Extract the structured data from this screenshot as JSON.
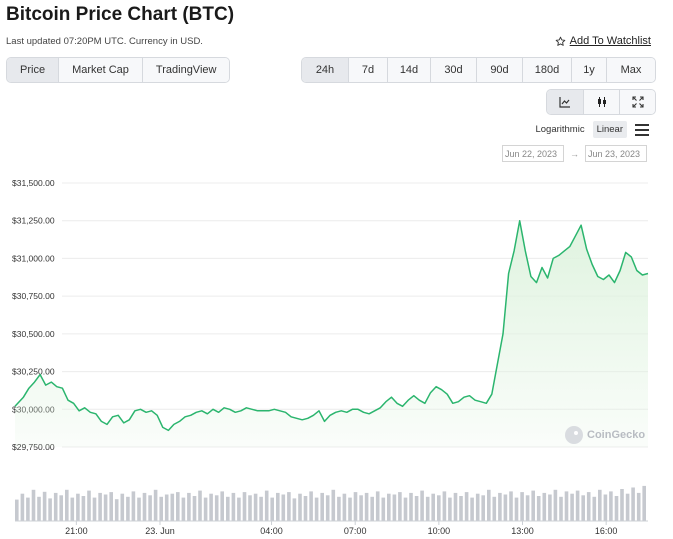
{
  "page": {
    "title": "Bitcoin Price Chart (BTC)",
    "updated": "Last updated 07:20PM UTC. Currency in USD.",
    "watchlist_label": "Add To Watchlist"
  },
  "tabs": [
    {
      "label": "Price",
      "active": true
    },
    {
      "label": "Market Cap",
      "active": false
    },
    {
      "label": "TradingView",
      "active": false
    }
  ],
  "ranges": [
    {
      "label": "24h",
      "active": true
    },
    {
      "label": "7d",
      "active": false
    },
    {
      "label": "14d",
      "active": false
    },
    {
      "label": "30d",
      "active": false
    },
    {
      "label": "90d",
      "active": false
    },
    {
      "label": "180d",
      "active": false
    },
    {
      "label": "1y",
      "active": false
    },
    {
      "label": "Max",
      "active": false
    }
  ],
  "chart_types": [
    {
      "icon": "line-chart-icon",
      "active": true
    },
    {
      "icon": "candlestick-icon",
      "active": false
    },
    {
      "icon": "fullscreen-icon",
      "active": false
    }
  ],
  "scale": {
    "logarithmic": "Logarithmic",
    "linear": "Linear",
    "active": "linear"
  },
  "date_range": {
    "from": "Jun 22, 2023",
    "to": "Jun 23, 2023",
    "separator": "→"
  },
  "watermark": "CoinGecko",
  "colors": {
    "line": "#2bb56e",
    "fill": "#dff3df",
    "grid": "#ececec",
    "volume": "#c6c9cf",
    "accent_active": "#e7e9ed"
  },
  "chart_data": {
    "type": "area",
    "y_ticks": [
      "$31,500.00",
      "$31,250.00",
      "$31,000.00",
      "$30,750.00",
      "$30,500.00",
      "$30,250.00",
      "$30,000.00",
      "$29,750.00"
    ],
    "y_tick_values": [
      31500,
      31250,
      31000,
      30750,
      30500,
      30250,
      30000,
      29750
    ],
    "ylim": [
      29680,
      31620
    ],
    "x_ticks": [
      "21:00",
      "23. Jun",
      "04:00",
      "07:00",
      "10:00",
      "13:00",
      "16:00"
    ],
    "x_tick_hours": [
      2,
      5,
      9,
      12,
      15,
      18,
      21
    ],
    "xlim": [
      -0.2,
      22.5
    ],
    "series": [
      {
        "x": [
          -0.2,
          0.1,
          0.3,
          0.5,
          0.7,
          0.9,
          1.1,
          1.3,
          1.5,
          1.7,
          1.9,
          2.1,
          2.3,
          2.5,
          2.7,
          2.9,
          3.1,
          3.3,
          3.5,
          3.7,
          3.9,
          4.1,
          4.3,
          4.5,
          4.7,
          4.9,
          5.1,
          5.3,
          5.5,
          5.7,
          5.9,
          6.1,
          6.3,
          6.5,
          6.7,
          6.9,
          7.1,
          7.3,
          7.5,
          7.7,
          7.9,
          8.1,
          8.3,
          8.5,
          8.7,
          8.9,
          9.1,
          9.3,
          9.5,
          9.7,
          9.9,
          10.1,
          10.3,
          10.5,
          10.7,
          10.9,
          11.1,
          11.3,
          11.5,
          11.7,
          11.9,
          12.1,
          12.3,
          12.5,
          12.7,
          12.9,
          13.1,
          13.3,
          13.5,
          13.7,
          13.9,
          14.1,
          14.3,
          14.5,
          14.7,
          14.9,
          15.1,
          15.3,
          15.5,
          15.7,
          15.9,
          16.1,
          16.3,
          16.5,
          16.7,
          16.9,
          17.1,
          17.3,
          17.5,
          17.7,
          17.9,
          18.1,
          18.3,
          18.5,
          18.7,
          18.9,
          19.1,
          19.3,
          19.5,
          19.7,
          19.9,
          20.1,
          20.3,
          20.5,
          20.7,
          20.9,
          21.1,
          21.3,
          21.5,
          21.7,
          21.9,
          22.1,
          22.3,
          22.5
        ],
        "values": [
          30020,
          30080,
          30140,
          30180,
          30230,
          30160,
          30180,
          30150,
          30140,
          30060,
          30040,
          29990,
          30010,
          29980,
          29970,
          29920,
          29900,
          29950,
          29960,
          29910,
          29930,
          29990,
          30000,
          29980,
          29990,
          29960,
          29880,
          29860,
          29900,
          29920,
          29950,
          29960,
          29980,
          29990,
          29970,
          30000,
          29980,
          30010,
          30000,
          29980,
          29990,
          30010,
          30000,
          29990,
          29990,
          29990,
          30000,
          29990,
          29980,
          29950,
          29940,
          29930,
          29940,
          29960,
          29990,
          29920,
          29960,
          29980,
          29990,
          29980,
          30000,
          30000,
          29980,
          29970,
          29990,
          30010,
          30050,
          30080,
          30040,
          30020,
          30060,
          30090,
          30060,
          30040,
          30110,
          30150,
          30130,
          30100,
          30040,
          30050,
          30080,
          30090,
          30060,
          30050,
          30040,
          30100,
          30300,
          30500,
          30900,
          31050,
          31250,
          31050,
          30880,
          30840,
          30940,
          30870,
          31000,
          31020,
          31050,
          31080,
          31150,
          31220,
          31060,
          30960,
          30880,
          30860,
          30890,
          30840,
          30920,
          31040,
          31010,
          30920,
          30890,
          30900
        ]
      }
    ],
    "volume": [
      0.55,
      0.7,
      0.6,
      0.8,
      0.62,
      0.75,
      0.58,
      0.72,
      0.66,
      0.8,
      0.6,
      0.7,
      0.64,
      0.78,
      0.6,
      0.72,
      0.68,
      0.74,
      0.56,
      0.7,
      0.62,
      0.76,
      0.6,
      0.72,
      0.66,
      0.8,
      0.62,
      0.68,
      0.7,
      0.74,
      0.6,
      0.72,
      0.64,
      0.78,
      0.6,
      0.7,
      0.66,
      0.76,
      0.62,
      0.72,
      0.6,
      0.74,
      0.66,
      0.7,
      0.62,
      0.78,
      0.6,
      0.72,
      0.68,
      0.74,
      0.58,
      0.7,
      0.64,
      0.76,
      0.6,
      0.72,
      0.66,
      0.8,
      0.62,
      0.7,
      0.6,
      0.74,
      0.66,
      0.72,
      0.62,
      0.76,
      0.6,
      0.7,
      0.68,
      0.74,
      0.6,
      0.72,
      0.64,
      0.78,
      0.62,
      0.7,
      0.66,
      0.76,
      0.6,
      0.72,
      0.64,
      0.74,
      0.6,
      0.7,
      0.66,
      0.8,
      0.62,
      0.72,
      0.68,
      0.76,
      0.6,
      0.74,
      0.66,
      0.78,
      0.64,
      0.72,
      0.68,
      0.8,
      0.62,
      0.76,
      0.7,
      0.78,
      0.66,
      0.74,
      0.62,
      0.8,
      0.68,
      0.76,
      0.64,
      0.82,
      0.7,
      0.86,
      0.72,
      0.9
    ],
    "grid": true,
    "legend": "none"
  }
}
